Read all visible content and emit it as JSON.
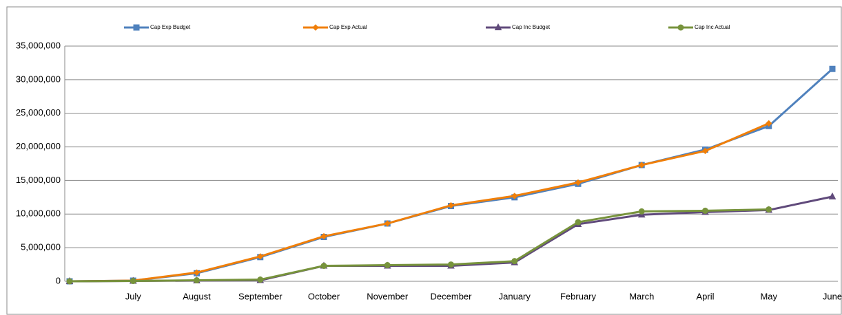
{
  "chart_data": {
    "type": "line",
    "categories": [
      null,
      "July",
      "August",
      "September",
      "October",
      "November",
      "December",
      "January",
      "February",
      "March",
      "April",
      "May",
      "June"
    ],
    "series": [
      {
        "name": "Cap Exp Budget",
        "color": "#4f81bd",
        "marker": "square",
        "values": [
          0,
          100000,
          1200000,
          3600000,
          6600000,
          8600000,
          11200000,
          12500000,
          14500000,
          17300000,
          19600000,
          23100000,
          31600000
        ]
      },
      {
        "name": "Cap Exp Actual",
        "color": "#f07f09",
        "marker": "diamond",
        "values": [
          0,
          100000,
          1300000,
          3700000,
          6700000,
          8600000,
          11300000,
          12700000,
          14700000,
          17300000,
          19400000,
          23500000,
          null
        ]
      },
      {
        "name": "Cap Inc Budget",
        "color": "#604a7b",
        "marker": "triangle",
        "values": [
          0,
          50000,
          100000,
          150000,
          2300000,
          2300000,
          2300000,
          2800000,
          8500000,
          9900000,
          10300000,
          10600000,
          12600000
        ]
      },
      {
        "name": "Cap Inc Actual",
        "color": "#77933c",
        "marker": "circle",
        "values": [
          0,
          50000,
          150000,
          250000,
          2300000,
          2400000,
          2500000,
          3000000,
          8800000,
          10400000,
          10500000,
          10700000,
          null
        ]
      }
    ],
    "ylim": [
      0,
      35000000
    ],
    "yticks": [
      0,
      {
        "value": 5000000,
        "label": "5,000,000"
      },
      {
        "value": 10000000,
        "label": "10,000,000"
      },
      {
        "value": 15000000,
        "label": "15,000,000"
      },
      {
        "value": 20000000,
        "label": "20,000,000"
      },
      {
        "value": 25000000,
        "label": "25,000,000"
      },
      {
        "value": 30000000,
        "label": "30,000,000"
      },
      {
        "value": 35000000,
        "label": "35,000,000"
      }
    ],
    "grid": true,
    "legend": "top"
  }
}
